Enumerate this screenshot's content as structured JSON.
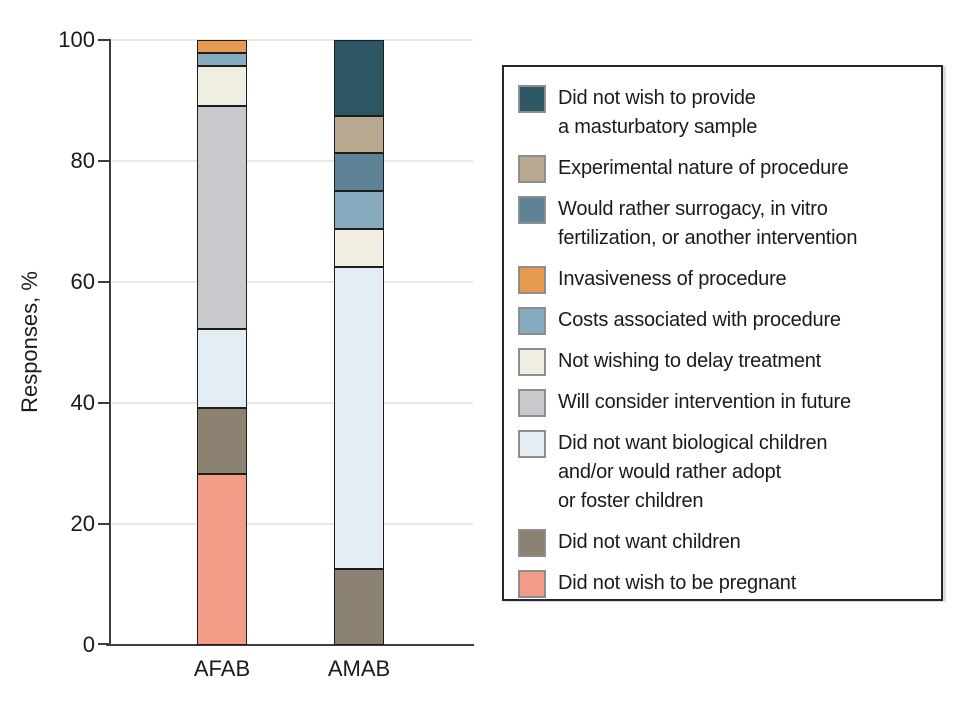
{
  "chart_data": {
    "type": "bar",
    "subtype": "stacked-100-percent",
    "ylabel": "Responses, %",
    "ylim": [
      0,
      100
    ],
    "grid": "horizontal",
    "legend_position": "right",
    "categories": [
      "AFAB",
      "AMAB"
    ],
    "ytick_labels_top_to_bottom": [
      "100",
      "80",
      "60",
      "40",
      "20",
      "0"
    ],
    "series": [
      {
        "name": "Did not wish to be pregnant",
        "color": "#f29b86",
        "values": [
          28.26,
          0
        ]
      },
      {
        "name": "Did not want children",
        "color": "#8b8272",
        "values": [
          10.87,
          12.5
        ]
      },
      {
        "name": "Did not want biological children and/or would rather adopt or foster children",
        "color": "#e3edf3",
        "values": [
          13.04,
          50
        ]
      },
      {
        "name": "Will consider intervention in future",
        "color": "#c8c9cc",
        "values": [
          36.96,
          0
        ]
      },
      {
        "name": "Not wishing to delay treatment",
        "color": "#efeee1",
        "values": [
          6.52,
          6.25
        ]
      },
      {
        "name": "Costs associated with procedure",
        "color": "#86abbf",
        "values": [
          2.17,
          6.25
        ]
      },
      {
        "name": "Invasiveness of procedure",
        "color": "#e69a50",
        "values": [
          2.17,
          0
        ]
      },
      {
        "name": "Would rather surrogacy, in vitro fertilization, or another intervention",
        "color": "#5e8296",
        "values": [
          0,
          6.25
        ]
      },
      {
        "name": "Experimental nature of procedure",
        "color": "#b7a88f",
        "values": [
          0,
          6.25
        ]
      },
      {
        "name": "Did not wish to provide a masturbatory sample",
        "color": "#2e5766",
        "values": [
          0,
          12.5
        ]
      }
    ],
    "legend": [
      {
        "color": "#2e5766",
        "label": [
          "Did not wish to provide",
          "a masturbatory sample"
        ]
      },
      {
        "color": "#b7a88f",
        "label": [
          "Experimental nature of procedure"
        ]
      },
      {
        "color": "#5e8296",
        "label": [
          "Would rather surrogacy, in vitro",
          "fertilization, or another intervention"
        ]
      },
      {
        "color": "#e69a50",
        "label": [
          "Invasiveness of procedure"
        ]
      },
      {
        "color": "#86abbf",
        "label": [
          "Costs associated with procedure"
        ]
      },
      {
        "color": "#efeee1",
        "label": [
          "Not wishing to delay treatment"
        ]
      },
      {
        "color": "#c8c9cc",
        "label": [
          "Will consider intervention in future"
        ]
      },
      {
        "color": "#e3edf3",
        "label": [
          "Did not want biological children",
          "and/or would rather adopt",
          "or foster children"
        ]
      },
      {
        "color": "#8b8272",
        "label": [
          "Did not want children"
        ]
      },
      {
        "color": "#f29b86",
        "label": [
          "Did not wish to be pregnant"
        ]
      }
    ]
  }
}
